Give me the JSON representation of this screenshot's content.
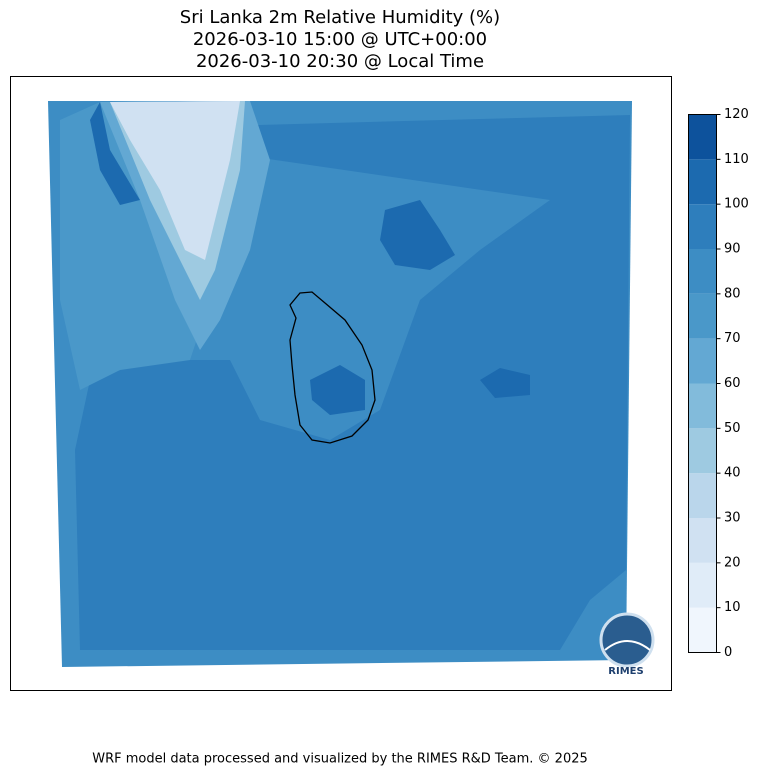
{
  "title_lines": [
    "Sri Lanka 2m Relative Humidity (%)",
    "2026-03-10 15:00 @ UTC+00:00",
    "2026-03-10 20:30 @ Local Time"
  ],
  "colorbar": {
    "ticks": [
      0,
      10,
      20,
      30,
      40,
      50,
      60,
      70,
      80,
      90,
      100,
      110,
      120
    ],
    "colors": [
      "#f0f6fd",
      "#e0ecf8",
      "#d0e1f2",
      "#bad6eb",
      "#9ecae1",
      "#82bbdb",
      "#63a8d3",
      "#4a98c9",
      "#3d8dc4",
      "#2e7ebc",
      "#1c6aaf",
      "#0d529c",
      "#083c7d"
    ]
  },
  "logo": {
    "text": "RIMES"
  },
  "footer": "WRF model data processed and visualized by the RIMES R&D Team. © 2025"
}
